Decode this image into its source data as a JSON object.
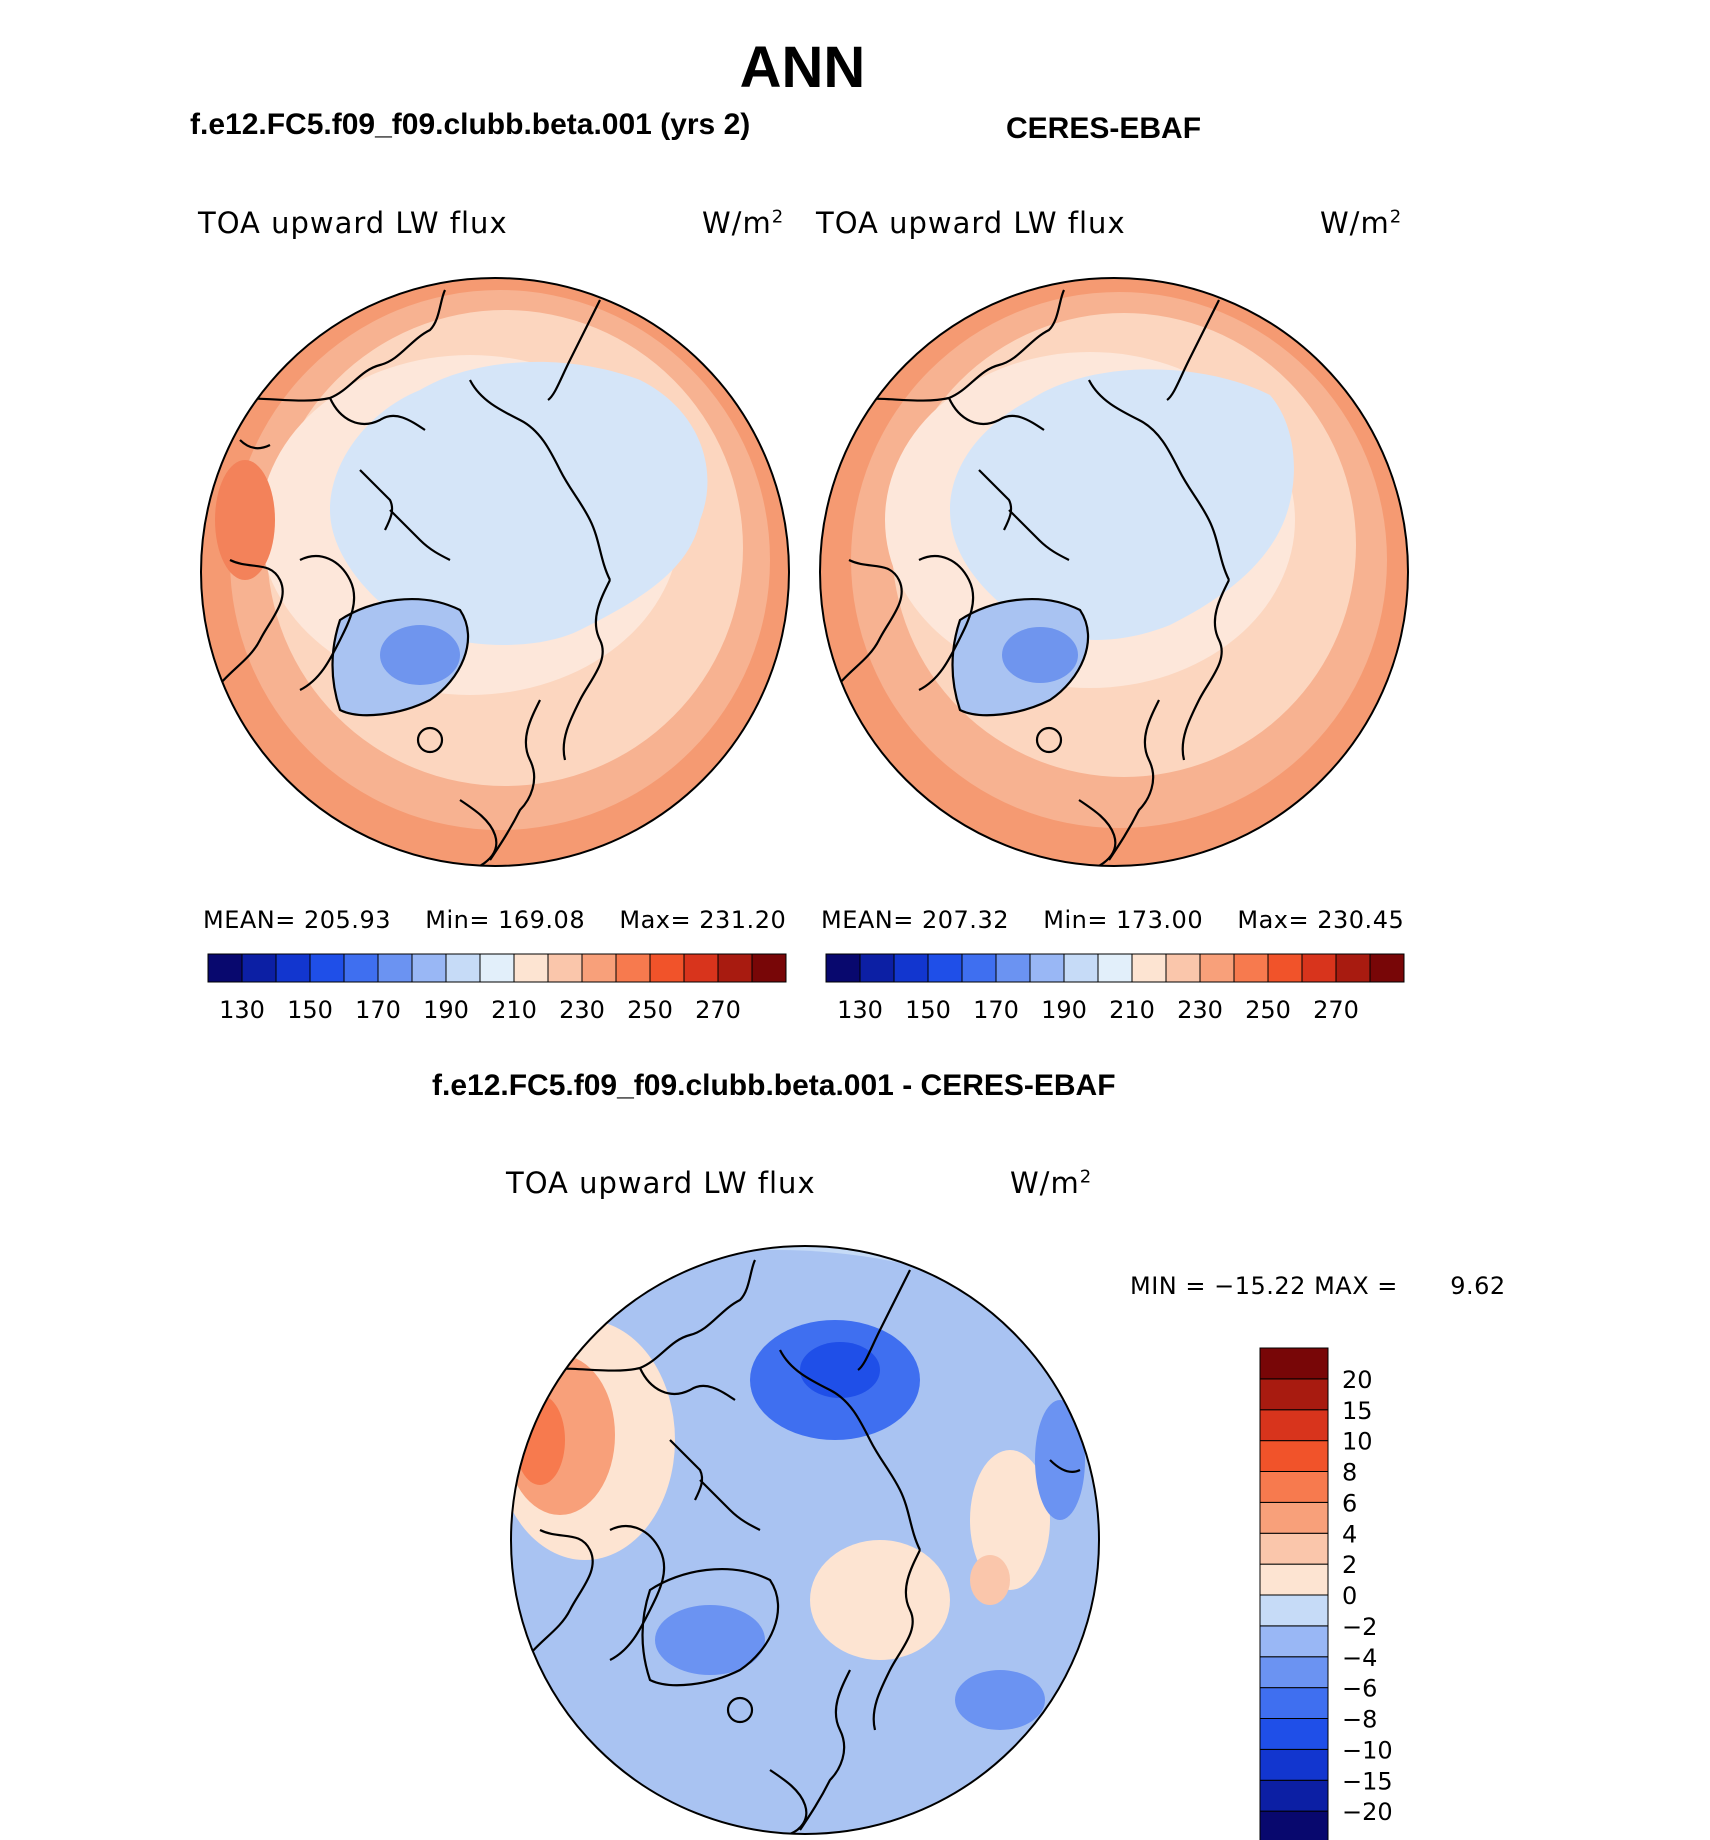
{
  "page": {
    "title": "ANN",
    "model_title": "f.e12.FC5.f09_f09.clubb.beta.001 (yrs 2)",
    "obs_title": "CERES-EBAF",
    "diff_title": "f.e12.FC5.f09_f09.clubb.beta.001 - CERES-EBAF"
  },
  "panels": {
    "model": {
      "variable": "TOA upward LW flux",
      "units": "W/m",
      "units_exp": "2",
      "mean_label": "MEAN=",
      "mean": "205.93",
      "min_label": "Min=",
      "min": "169.08",
      "max_label": "Max=",
      "max": "231.20"
    },
    "obs": {
      "variable": "TOA upward LW flux",
      "units": "W/m",
      "units_exp": "2",
      "mean_label": "MEAN=",
      "mean": "207.32",
      "min_label": "Min=",
      "min": "173.00",
      "max_label": "Max=",
      "max": "230.45"
    },
    "diff": {
      "variable": "TOA upward LW flux",
      "units": "W/m",
      "units_exp": "2",
      "min_label": "MIN =",
      "min": "−15.22",
      "max_label": "MAX =",
      "max": "9.62"
    }
  },
  "chart_data": [
    {
      "type": "heatmap",
      "projection": "north polar stereographic",
      "title": "f.e12.FC5.f09_f09.clubb.beta.001 (yrs 2)",
      "variable": "TOA upward LW flux",
      "units": "W/m2",
      "stats": {
        "mean": 205.93,
        "min": 169.08,
        "max": 231.2
      },
      "colorbar": {
        "orientation": "horizontal",
        "levels": [
          130,
          140,
          150,
          160,
          170,
          180,
          190,
          200,
          210,
          220,
          230,
          240,
          250,
          260,
          270
        ],
        "tick_labels": [
          "130",
          "150",
          "170",
          "190",
          "210",
          "230",
          "250",
          "270"
        ],
        "colors": [
          "#08086e",
          "#0c1fa4",
          "#1236cf",
          "#1f4fe8",
          "#3f6ff0",
          "#6b93f2",
          "#99b7f5",
          "#c6dbf7",
          "#e2effa",
          "#fde4d2",
          "#fac6ab",
          "#f8a07a",
          "#f77a4e",
          "#f1532a",
          "#d8341c",
          "#a81b10",
          "#780607"
        ]
      }
    },
    {
      "type": "heatmap",
      "projection": "north polar stereographic",
      "title": "CERES-EBAF",
      "variable": "TOA upward LW flux",
      "units": "W/m2",
      "stats": {
        "mean": 207.32,
        "min": 173.0,
        "max": 230.45
      },
      "colorbar": {
        "orientation": "horizontal",
        "levels": [
          130,
          140,
          150,
          160,
          170,
          180,
          190,
          200,
          210,
          220,
          230,
          240,
          250,
          260,
          270
        ],
        "tick_labels": [
          "130",
          "150",
          "170",
          "190",
          "210",
          "230",
          "250",
          "270"
        ],
        "colors": [
          "#08086e",
          "#0c1fa4",
          "#1236cf",
          "#1f4fe8",
          "#3f6ff0",
          "#6b93f2",
          "#99b7f5",
          "#c6dbf7",
          "#e2effa",
          "#fde4d2",
          "#fac6ab",
          "#f8a07a",
          "#f77a4e",
          "#f1532a",
          "#d8341c",
          "#a81b10",
          "#780607"
        ]
      }
    },
    {
      "type": "heatmap",
      "projection": "north polar stereographic",
      "title": "f.e12.FC5.f09_f09.clubb.beta.001 - CERES-EBAF",
      "variable": "TOA upward LW flux",
      "units": "W/m2",
      "stats": {
        "min": -15.22,
        "max": 9.62
      },
      "colorbar": {
        "orientation": "vertical",
        "levels": [
          -20,
          -15,
          -10,
          -8,
          -6,
          -4,
          -2,
          0,
          2,
          4,
          6,
          8,
          10,
          15,
          20
        ],
        "tick_labels": [
          "−20",
          "−15",
          "−10",
          "−8",
          "−6",
          "−4",
          "−2",
          "0",
          "2",
          "4",
          "6",
          "8",
          "10",
          "15",
          "20"
        ],
        "colors": [
          "#08086e",
          "#0c1fa4",
          "#1236cf",
          "#1f4fe8",
          "#3f6ff0",
          "#6b93f2",
          "#99b7f5",
          "#c6dbf7",
          "#fde4d2",
          "#fac6ab",
          "#f8a07a",
          "#f77a4e",
          "#f1532a",
          "#d8341c",
          "#a81b10",
          "#780607"
        ]
      }
    }
  ]
}
